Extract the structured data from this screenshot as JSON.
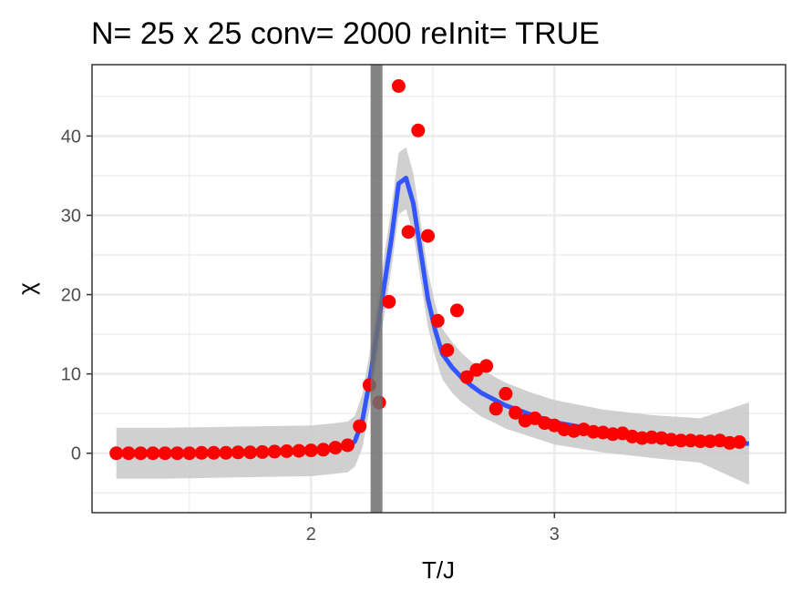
{
  "chart_data": {
    "type": "scatter",
    "title": "N= 25 x 25  conv= 2000  reInit= TRUE",
    "xlabel": "T/J",
    "ylabel": "χ",
    "xlim": [
      1.1,
      3.95
    ],
    "ylim": [
      -7.5,
      49
    ],
    "x_ticks": [
      2,
      3
    ],
    "x_tick_labels": [
      "2",
      "3"
    ],
    "y_ticks": [
      0,
      10,
      20,
      30,
      40
    ],
    "y_tick_labels": [
      "0",
      "10",
      "20",
      "30",
      "40"
    ],
    "grid": true,
    "legend": "none",
    "colors": {
      "points": "#ff0000",
      "smooth_line": "#3355ff",
      "ribbon": "#c8c8c8",
      "vline": "#6e6e6e",
      "grid": "#ebebeb",
      "panel_border": "#333333"
    },
    "vline_x": 2.269,
    "series": [
      {
        "x": [
          1.2,
          1.25,
          1.3,
          1.35,
          1.4,
          1.45,
          1.5,
          1.55,
          1.6,
          1.65,
          1.7,
          1.75,
          1.8,
          1.85,
          1.9,
          1.95,
          2.0,
          2.05,
          2.1,
          2.15,
          2.2,
          2.24,
          2.28,
          2.32,
          2.36,
          2.4,
          2.44,
          2.48,
          2.52,
          2.56,
          2.6,
          2.64,
          2.68,
          2.72,
          2.76,
          2.8,
          2.84,
          2.88,
          2.92,
          2.96,
          3.0,
          3.04,
          3.08,
          3.12,
          3.16,
          3.2,
          3.24,
          3.28,
          3.32,
          3.36,
          3.4,
          3.44,
          3.48,
          3.52,
          3.56,
          3.6,
          3.64,
          3.68,
          3.72,
          3.76
        ],
        "values": [
          0.0,
          0.0,
          0.0,
          0.0,
          0.0,
          0.0,
          0.0,
          0.05,
          0.05,
          0.05,
          0.1,
          0.1,
          0.15,
          0.2,
          0.25,
          0.3,
          0.35,
          0.45,
          0.7,
          1.0,
          3.4,
          8.6,
          6.4,
          19.1,
          46.3,
          27.9,
          40.7,
          27.4,
          16.7,
          13.0,
          18.0,
          9.6,
          10.5,
          11.0,
          5.6,
          7.5,
          5.1,
          4.1,
          4.4,
          3.8,
          3.5,
          3.0,
          2.8,
          3.0,
          2.7,
          2.6,
          2.4,
          2.5,
          2.1,
          1.9,
          2.0,
          1.9,
          1.7,
          1.6,
          1.6,
          1.5,
          1.5,
          1.6,
          1.3,
          1.4
        ]
      }
    ],
    "smooth": {
      "x": [
        1.2,
        1.4,
        1.6,
        1.8,
        2.0,
        2.1,
        2.15,
        2.18,
        2.21,
        2.24,
        2.27,
        2.3,
        2.33,
        2.36,
        2.39,
        2.42,
        2.45,
        2.48,
        2.51,
        2.54,
        2.58,
        2.62,
        2.66,
        2.7,
        2.75,
        2.8,
        2.9,
        3.0,
        3.2,
        3.4,
        3.6,
        3.8
      ],
      "y": [
        0.0,
        0.0,
        0.1,
        0.2,
        0.3,
        0.6,
        0.8,
        1.5,
        4.0,
        9.0,
        15.0,
        21.0,
        27.0,
        34.0,
        34.7,
        31.5,
        25.5,
        19.5,
        15.5,
        12.5,
        10.8,
        9.5,
        8.5,
        7.6,
        6.8,
        6.0,
        4.9,
        3.9,
        2.8,
        2.1,
        1.6,
        1.2
      ],
      "band": [
        3.2,
        3.2,
        3.2,
        3.2,
        3.2,
        3.2,
        3.2,
        3.2,
        3.4,
        3.5,
        3.7,
        3.8,
        3.8,
        3.9,
        3.9,
        3.8,
        3.7,
        3.5,
        3.3,
        3.2,
        3.2,
        3.1,
        3.0,
        3.0,
        2.9,
        2.9,
        2.8,
        2.8,
        2.7,
        2.7,
        2.8,
        5.2
      ]
    }
  }
}
